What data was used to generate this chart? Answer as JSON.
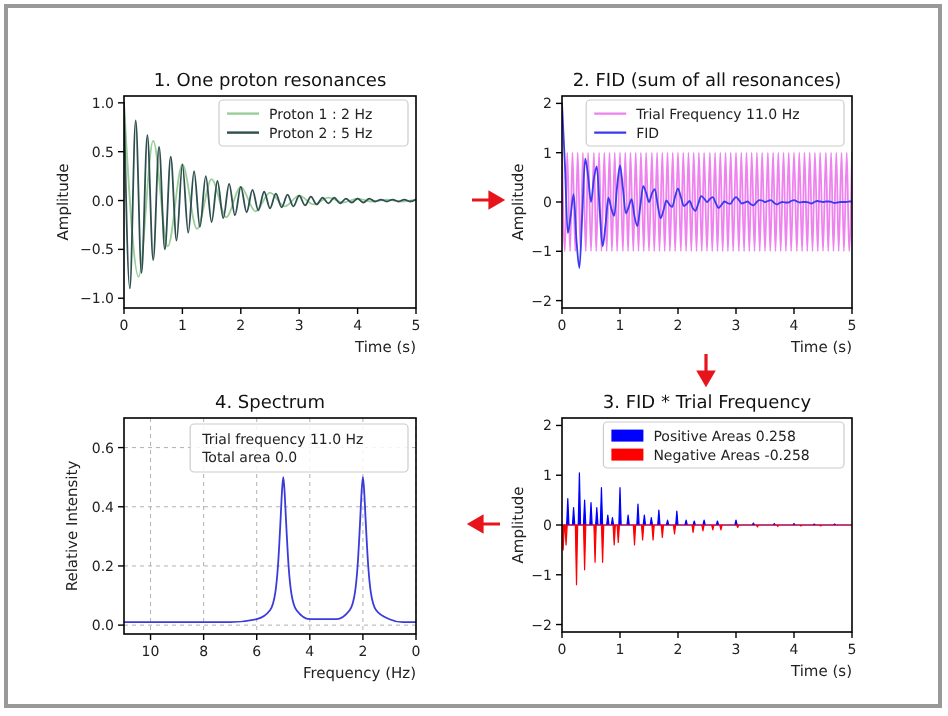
{
  "chart_data": [
    {
      "type": "line",
      "title": "1. One proton resonances",
      "xlabel": "Time (s)",
      "ylabel": "Amplitude",
      "xlim": [
        0,
        5
      ],
      "xticks": [
        0,
        1,
        2,
        3,
        4,
        5
      ],
      "ylim": [
        -1.1,
        1.07
      ],
      "yticks": [
        {
          "value": -1,
          "label": "−1.0"
        },
        {
          "value": -0.5,
          "label": "−0.5"
        },
        {
          "value": 0,
          "label": "0.0"
        },
        {
          "value": 0.5,
          "label": "0.5"
        },
        {
          "value": 1,
          "label": "1.0"
        }
      ],
      "legend": "top right",
      "series": [
        {
          "name": "Proton 1 : 2 Hz",
          "color": "#9acd9a",
          "x": [
            0,
            0.25,
            0.5,
            0.75,
            1,
            1.25,
            1.5,
            1.75,
            2,
            2.25,
            2.5,
            2.75,
            3,
            3.25,
            3.5,
            3.75,
            4,
            4.25,
            4.5,
            4.75,
            5
          ],
          "values": [
            1,
            -0.78,
            0.61,
            -0.47,
            0.37,
            -0.29,
            0.22,
            -0.17,
            0.14,
            -0.11,
            0.08,
            -0.06,
            0.05,
            -0.04,
            0.03,
            -0.02,
            0.02,
            -0.01,
            0.01,
            -0.01,
            0.01
          ]
        },
        {
          "name": "Proton 2 : 5 Hz",
          "color": "#2f4f4f",
          "x": [
            0,
            0.1,
            0.2,
            0.3,
            0.4,
            0.5,
            0.6,
            0.7,
            0.8,
            0.9,
            1,
            1.1,
            1.2,
            1.3,
            1.4,
            1.5,
            1.6,
            1.7,
            1.8,
            1.9,
            2,
            2.1,
            2.2,
            2.3,
            2.4,
            2.5,
            2.6,
            2.7,
            2.8,
            2.9,
            3,
            3.1,
            3.2,
            3.3,
            3.4,
            3.5,
            3.6,
            3.7,
            3.8,
            3.9,
            4,
            4.1,
            4.2,
            4.3,
            4.4,
            4.5,
            4.6,
            4.7,
            4.8,
            4.9,
            5
          ],
          "values": [
            1,
            -0.9,
            0.82,
            -0.74,
            0.67,
            -0.61,
            0.55,
            -0.5,
            0.45,
            -0.41,
            0.37,
            -0.33,
            0.3,
            -0.27,
            0.25,
            -0.22,
            0.2,
            -0.18,
            0.17,
            -0.15,
            0.14,
            -0.12,
            0.11,
            -0.1,
            0.09,
            -0.08,
            0.07,
            -0.07,
            0.06,
            -0.06,
            0.05,
            -0.05,
            0.04,
            -0.04,
            0.03,
            -0.03,
            0.03,
            -0.03,
            0.02,
            -0.02,
            0.02,
            -0.02,
            0.02,
            -0.01,
            0.01,
            -0.01,
            0.01,
            -0.01,
            0.01,
            -0.01,
            0.01
          ]
        }
      ]
    },
    {
      "type": "line",
      "title": "2. FID (sum of all resonances)",
      "xlabel": "Time (s)",
      "ylabel": "Amplitude",
      "xlim": [
        0,
        5
      ],
      "xticks": [
        0,
        1,
        2,
        3,
        4,
        5
      ],
      "ylim": [
        -2.15,
        2.15
      ],
      "yticks": [
        {
          "value": -2,
          "label": "−2"
        },
        {
          "value": -1,
          "label": "−1"
        },
        0,
        1,
        2
      ],
      "legend": "top right",
      "series": [
        {
          "name": "Trial Frequency 11.0 Hz",
          "color": "#ee82ee",
          "x": [
            0,
            0.05,
            0.09,
            0.14,
            0.18,
            0.23,
            0.27,
            0.32,
            0.36,
            0.41,
            0.45,
            0.5,
            0.55,
            0.59,
            0.64,
            0.68,
            0.73,
            0.77,
            0.82,
            0.86,
            0.91,
            0.95,
            1,
            1.05,
            1.09,
            1.14,
            1.18,
            1.23,
            1.27,
            1.32,
            1.36,
            1.41,
            1.45,
            1.5,
            1.55,
            1.59,
            1.64,
            1.68,
            1.73,
            1.77,
            1.82,
            1.86,
            1.91,
            1.95,
            2,
            2.05,
            2.09,
            2.14,
            2.18,
            2.23,
            2.27,
            2.32,
            2.36,
            2.41,
            2.45,
            2.5,
            2.55,
            2.59,
            2.64,
            2.68,
            2.73,
            2.77,
            2.82,
            2.86,
            2.91,
            2.95,
            3,
            3.05,
            3.09,
            3.14,
            3.18,
            3.23,
            3.27,
            3.32,
            3.36,
            3.41,
            3.45,
            3.5,
            3.55,
            3.59,
            3.64,
            3.68,
            3.73,
            3.77,
            3.82,
            3.86,
            3.91,
            3.95,
            4,
            4.05,
            4.09,
            4.14,
            4.18,
            4.23,
            4.27,
            4.32,
            4.36,
            4.41,
            4.45,
            4.5,
            4.55,
            4.59,
            4.64,
            4.68,
            4.73,
            4.77,
            4.82,
            4.86,
            4.91,
            4.95,
            5
          ],
          "values": [
            1,
            -1,
            1,
            -1,
            1,
            -1,
            1,
            -1,
            1,
            -1,
            1,
            -1,
            1,
            -1,
            1,
            -1,
            1,
            -1,
            1,
            -1,
            1,
            -1,
            1,
            -1,
            1,
            -1,
            1,
            -1,
            1,
            -1,
            1,
            -1,
            1,
            -1,
            1,
            -1,
            1,
            -1,
            1,
            -1,
            1,
            -1,
            1,
            -1,
            1,
            -1,
            1,
            -1,
            1,
            -1,
            1,
            -1,
            1,
            -1,
            1,
            -1,
            1,
            -1,
            1,
            -1,
            1,
            -1,
            1,
            -1,
            1,
            -1,
            1,
            -1,
            1,
            -1,
            1,
            -1,
            1,
            -1,
            1,
            -1,
            1,
            -1,
            1,
            -1,
            1,
            -1,
            1,
            -1,
            1,
            -1,
            1,
            -1,
            1,
            -1,
            1,
            -1,
            1,
            -1,
            1,
            -1,
            1,
            -1,
            1,
            -1,
            1,
            -1,
            1,
            -1,
            1,
            -1,
            1,
            -1,
            1,
            -1,
            1
          ]
        },
        {
          "name": "FID",
          "color": "#3a3aee",
          "x": [
            0,
            0.05,
            0.1,
            0.15,
            0.2,
            0.25,
            0.3,
            0.35,
            0.4,
            0.45,
            0.5,
            0.55,
            0.6,
            0.65,
            0.7,
            0.75,
            0.8,
            0.85,
            0.9,
            0.95,
            1,
            1.05,
            1.1,
            1.15,
            1.2,
            1.25,
            1.3,
            1.35,
            1.4,
            1.45,
            1.5,
            1.55,
            1.6,
            1.65,
            1.7,
            1.75,
            1.8,
            1.85,
            1.9,
            1.95,
            2,
            2.05,
            2.1,
            2.15,
            2.2,
            2.25,
            2.3,
            2.35,
            2.4,
            2.45,
            2.5,
            2.55,
            2.6,
            2.65,
            2.7,
            2.75,
            2.8,
            2.85,
            2.9,
            2.95,
            3,
            3.05,
            3.1,
            3.15,
            3.2,
            3.25,
            3.3,
            3.35,
            3.4,
            3.45,
            3.5,
            3.55,
            3.6,
            3.65,
            3.7,
            3.75,
            3.8,
            3.85,
            3.9,
            3.95,
            4,
            4.05,
            4.1,
            4.15,
            4.2,
            4.25,
            4.3,
            4.35,
            4.4,
            4.45,
            4.5,
            4.55,
            4.6,
            4.65,
            4.7,
            4.75,
            4.8,
            4.85,
            4.9,
            4.95,
            5
          ],
          "values": [
            2,
            0.77,
            -0.63,
            -0.27,
            0.16,
            -0.78,
            -1.34,
            -0.22,
            0.88,
            0.52,
            0,
            0.47,
            0.72,
            -0.16,
            -0.9,
            -0.47,
            0.09,
            -0.13,
            -0.28,
            0.31,
            0.74,
            0.28,
            -0.23,
            -0.1,
            0.06,
            -0.29,
            -0.49,
            -0.08,
            0.32,
            0.19,
            0,
            0.17,
            0.26,
            -0.06,
            -0.33,
            -0.17,
            0.03,
            -0.05,
            -0.1,
            0.11,
            0.27,
            0.1,
            -0.08,
            -0.04,
            0.02,
            -0.11,
            -0.18,
            -0.03,
            0.12,
            0.07,
            0,
            0.06,
            0.1,
            -0.02,
            -0.12,
            -0.06,
            0.01,
            -0.02,
            -0.04,
            0.04,
            0.1,
            0.04,
            -0.03,
            -0.01,
            0.01,
            -0.04,
            -0.07,
            -0.01,
            0.04,
            0.03,
            0,
            0.02,
            0.04,
            -0.01,
            -0.05,
            -0.02,
            0,
            -0.01,
            -0.01,
            0.02,
            0.04,
            0.01,
            -0.01,
            0,
            0,
            -0.01,
            -0.03,
            0,
            0.02,
            0.01,
            0,
            0.01,
            0.01,
            0,
            -0.02,
            -0.01,
            0,
            0,
            0,
            0.01,
            0.01
          ]
        }
      ]
    },
    {
      "type": "line",
      "title": "4. Spectrum",
      "xlabel": "Frequency (Hz)",
      "ylabel": "Relative Intensity",
      "xlim": [
        11,
        0
      ],
      "xticks": [
        10,
        8,
        6,
        4,
        2,
        0
      ],
      "ylim": [
        -0.03,
        0.7
      ],
      "yticks": [
        {
          "value": 0,
          "label": "0.0"
        },
        0.2,
        0.4,
        0.6
      ],
      "grid": true,
      "annotations": [
        "Trial frequency 11.0 Hz",
        "Total area 0.0"
      ],
      "series": [
        {
          "color": "#3b3bdb",
          "x": [
            0,
            0.5,
            1,
            1.5,
            1.7,
            1.8,
            1.9,
            1.95,
            2,
            2.05,
            2.1,
            2.2,
            2.3,
            2.5,
            3,
            3.5,
            4,
            4.5,
            4.7,
            4.8,
            4.9,
            4.95,
            5,
            5.05,
            5.1,
            5.2,
            5.3,
            5.5,
            6,
            7,
            8,
            9,
            10,
            11
          ],
          "values": [
            0.01,
            0.01,
            0.02,
            0.05,
            0.11,
            0.2,
            0.36,
            0.45,
            0.5,
            0.45,
            0.36,
            0.2,
            0.11,
            0.05,
            0.02,
            0.02,
            0.02,
            0.05,
            0.11,
            0.2,
            0.36,
            0.45,
            0.5,
            0.45,
            0.36,
            0.2,
            0.11,
            0.05,
            0.02,
            0.01,
            0.01,
            0.01,
            0.01,
            0.01
          ]
        }
      ]
    },
    {
      "type": "area",
      "title": "3. FID * Trial Frequency",
      "xlabel": "Time (s)",
      "ylabel": "Amplitude",
      "xlim": [
        0,
        5
      ],
      "xticks": [
        0,
        1,
        2,
        3,
        4,
        5
      ],
      "ylim": [
        -2.15,
        2.15
      ],
      "yticks": [
        {
          "value": -2,
          "label": "−2"
        },
        {
          "value": -1,
          "label": "−1"
        },
        0,
        1,
        2
      ],
      "legend": "top right",
      "series": [
        {
          "name": "Positive Areas 0.258",
          "color": "#0000ff",
          "x": [
            0,
            0.08,
            0.1,
            0.12,
            0.18,
            0.2,
            0.22,
            0.28,
            0.3,
            0.32,
            0.37,
            0.39,
            0.41,
            0.48,
            0.5,
            0.52,
            0.58,
            0.6,
            0.62,
            0.66,
            0.68,
            0.7,
            0.77,
            0.79,
            0.81,
            0.85,
            0.87,
            0.89,
            0.98,
            1,
            1.02,
            1.12,
            1.14,
            1.16,
            1.29,
            1.31,
            1.33,
            1.4,
            1.42,
            1.44,
            1.52,
            1.54,
            1.56,
            1.65,
            1.67,
            1.69,
            1.8,
            1.82,
            1.84,
            1.96,
            1.98,
            2,
            2.12,
            2.14,
            2.16,
            2.26,
            2.28,
            2.3,
            2.43,
            2.45,
            2.47,
            2.66,
            2.68,
            2.7,
            2.98,
            3,
            3.02,
            3.28,
            3.3,
            3.32,
            3.64,
            3.66,
            3.68,
            3.98,
            4,
            4.02,
            4.33,
            4.35,
            4.37,
            4.68,
            4.7,
            4.72,
            5
          ],
          "values": [
            0,
            0,
            0.53,
            0,
            0,
            0.35,
            0,
            0,
            1.05,
            0,
            0,
            0.5,
            0,
            0,
            0.45,
            0,
            0,
            0.35,
            0,
            0,
            0.75,
            0,
            0,
            0.2,
            0,
            0,
            0.15,
            0,
            0,
            0.75,
            0,
            0,
            0.2,
            0,
            0,
            0.42,
            0,
            0,
            0.2,
            0,
            0,
            0.15,
            0,
            0,
            0.3,
            0,
            0,
            0.1,
            0,
            0,
            0.28,
            0,
            0,
            0.1,
            0,
            0,
            0.08,
            0,
            0,
            0.1,
            0,
            0,
            0.08,
            0,
            0,
            0.1,
            0,
            0,
            0.04,
            0,
            0,
            0.03,
            0,
            0,
            0.03,
            0,
            0,
            0.02,
            0,
            0,
            0.02,
            0,
            0
          ]
        },
        {
          "name": "Negative Areas -0.258",
          "color": "#ff0000",
          "x": [
            0,
            0.02,
            0.04,
            0.05,
            0.07,
            0.09,
            0.23,
            0.25,
            0.27,
            0.37,
            0.39,
            0.41,
            0.55,
            0.57,
            0.59,
            0.68,
            0.7,
            0.72,
            0.88,
            0.9,
            0.92,
            0.95,
            0.97,
            0.99,
            1.23,
            1.25,
            1.27,
            1.37,
            1.39,
            1.41,
            1.55,
            1.57,
            1.59,
            1.71,
            1.73,
            1.75,
            1.92,
            1.94,
            1.96,
            2.24,
            2.26,
            2.28,
            2.41,
            2.43,
            2.45,
            2.58,
            2.6,
            2.62,
            2.72,
            2.74,
            2.76,
            3.01,
            3.03,
            3.05,
            3.35,
            3.37,
            3.39,
            3.7,
            3.72,
            3.74,
            4.1,
            4.12,
            4.14,
            4.44,
            4.46,
            4.48,
            5
          ],
          "values": [
            0,
            -0.5,
            0,
            0,
            -0.4,
            0,
            0,
            -1.2,
            0,
            0,
            -0.9,
            0,
            0,
            -0.75,
            0,
            0,
            -0.75,
            0,
            0,
            -0.4,
            0,
            0,
            -0.35,
            0,
            0,
            -0.4,
            0,
            0,
            -0.3,
            0,
            0,
            -0.3,
            0,
            0,
            -0.25,
            0,
            0,
            -0.18,
            0,
            0,
            -0.15,
            0,
            0,
            -0.12,
            0,
            0,
            -0.1,
            0,
            0,
            -0.1,
            0,
            0,
            -0.05,
            0,
            0,
            -0.04,
            0,
            0,
            -0.03,
            0,
            0,
            -0.02,
            0,
            0,
            -0.02,
            0,
            0
          ]
        }
      ]
    }
  ]
}
